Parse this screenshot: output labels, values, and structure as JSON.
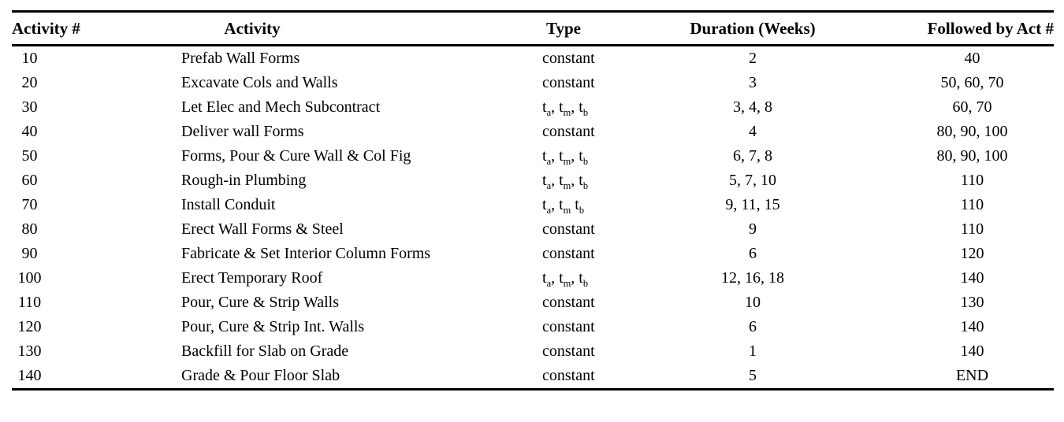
{
  "table": {
    "columns": [
      "Activity #",
      "Activity",
      "Type",
      "Duration (Weeks)",
      "Followed by Act #"
    ],
    "rows": [
      {
        "activity_no": "10",
        "activity": "Prefab Wall Forms",
        "type": "constant",
        "duration": "2",
        "followed_by": "40"
      },
      {
        "activity_no": "20",
        "activity": "Excavate Cols and Walls",
        "type": "constant",
        "duration": "3",
        "followed_by": "50, 60, 70"
      },
      {
        "activity_no": "30",
        "activity": "Let Elec and Mech Subcontract",
        "type": "t_a, t_m, t_b",
        "duration": "3, 4, 8",
        "followed_by": "60, 70"
      },
      {
        "activity_no": "40",
        "activity": "Deliver wall Forms",
        "type": "constant",
        "duration": "4",
        "followed_by": "80, 90, 100"
      },
      {
        "activity_no": "50",
        "activity": "Forms, Pour & Cure Wall & Col Fig",
        "type": "t_a, t_m, t_b",
        "duration": "6, 7, 8",
        "followed_by": "80, 90, 100"
      },
      {
        "activity_no": "60",
        "activity": "Rough-in Plumbing",
        "type": "t_a, t_m, t_b",
        "duration": "5, 7, 10",
        "followed_by": "110"
      },
      {
        "activity_no": "70",
        "activity": "Install Conduit",
        "type": "t_a, t_m t_b",
        "duration": "9, 11, 15",
        "followed_by": "110"
      },
      {
        "activity_no": "80",
        "activity": "Erect Wall Forms & Steel",
        "type": "constant",
        "duration": "9",
        "followed_by": "110"
      },
      {
        "activity_no": "90",
        "activity": "Fabricate & Set Interior Column Forms",
        "type": "constant",
        "duration": "6",
        "followed_by": "120"
      },
      {
        "activity_no": "100",
        "activity": "Erect Temporary Roof",
        "type": "t_a, t_m, t_b",
        "duration": "12, 16, 18",
        "followed_by": "140"
      },
      {
        "activity_no": "110",
        "activity": "Pour, Cure & Strip Walls",
        "type": "constant",
        "duration": "10",
        "followed_by": "130"
      },
      {
        "activity_no": "120",
        "activity": "Pour, Cure & Strip Int. Walls",
        "type": "constant",
        "duration": "6",
        "followed_by": "140"
      },
      {
        "activity_no": "130",
        "activity": "Backfill for Slab on Grade",
        "type": "constant",
        "duration": "1",
        "followed_by": "140"
      },
      {
        "activity_no": "140",
        "activity": "Grade & Pour Floor Slab",
        "type": "constant",
        "duration": "5",
        "followed_by": "END"
      }
    ],
    "colors": {
      "text": "#000000",
      "rule": "#000000",
      "background": "#ffffff"
    }
  }
}
